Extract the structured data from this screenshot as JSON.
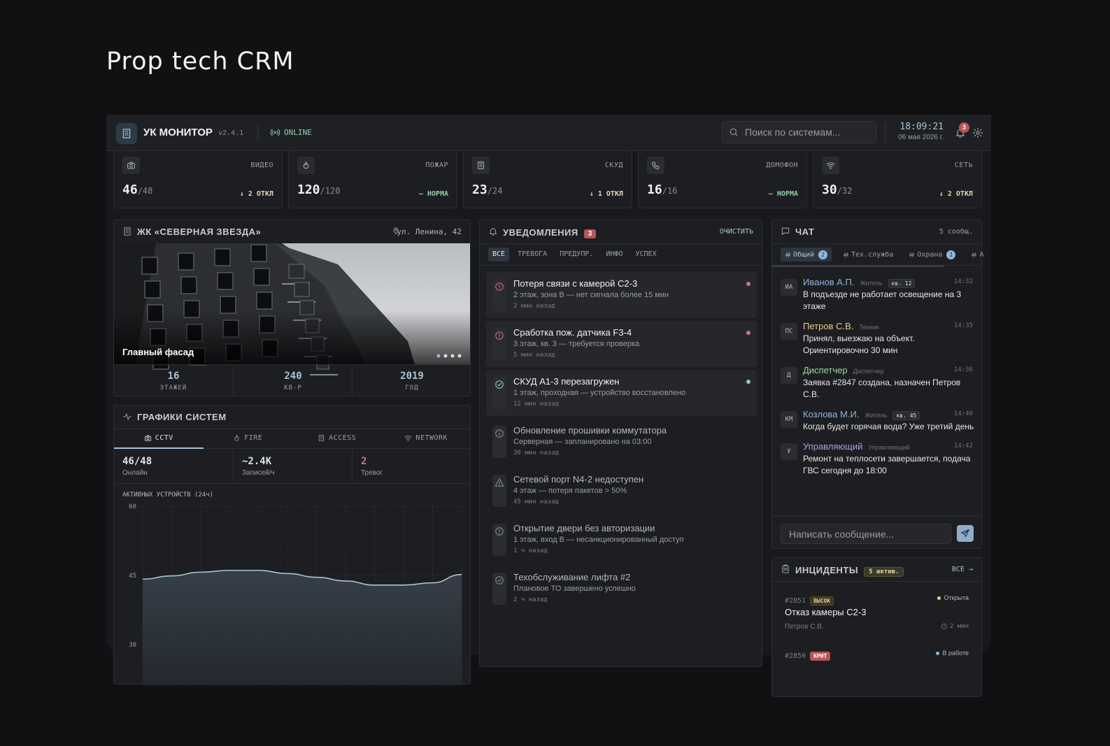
{
  "title": "Prop tech CRM",
  "header": {
    "brand": "УК МОНИТОР",
    "version": "v2.4.1",
    "status": "ONLINE",
    "search_placeholder": "Поиск по системам...",
    "time": "18:09:21",
    "date": "06 мая 2026 г.",
    "notification_count": "3"
  },
  "stats": [
    {
      "label": "ВИДЕО",
      "value": "46",
      "total": "/48",
      "status": "↓ 2 ОТКЛ",
      "ok": false
    },
    {
      "label": "ПОЖАР",
      "value": "120",
      "total": "/120",
      "status": "— НОРМА",
      "ok": true
    },
    {
      "label": "СКУД",
      "value": "23",
      "total": "/24",
      "status": "↓ 1 ОТКЛ",
      "ok": false
    },
    {
      "label": "ДОМОФОН",
      "value": "16",
      "total": "/16",
      "status": "— НОРМА",
      "ok": true
    },
    {
      "label": "СЕТЬ",
      "value": "30",
      "total": "/32",
      "status": "↓ 2 ОТКЛ",
      "ok": false
    }
  ],
  "building": {
    "name": "ЖК «СЕВЕРНАЯ ЗВЕЗДА»",
    "address": "ул. Ленина, 42",
    "photo_caption": "Главный фасад",
    "facts": [
      {
        "value": "16",
        "label": "ЭТАЖЕЙ"
      },
      {
        "value": "240",
        "label": "КВ-Р"
      },
      {
        "value": "2019",
        "label": "ГОД"
      }
    ]
  },
  "systems": {
    "title": "ГРАФИКИ СИСТЕМ",
    "tabs": [
      "CCTV",
      "FIRE",
      "ACCESS",
      "NETWORK"
    ],
    "metrics": [
      {
        "value": "46/48",
        "label": "Онлайн"
      },
      {
        "value": "~2.4K",
        "label": "Записей/ч"
      },
      {
        "value": "2",
        "label": "Тревог",
        "alert": true
      }
    ]
  },
  "chart_data": {
    "type": "area",
    "title": "АКТИВНЫХ УСТРОЙСТВ (24ч)",
    "categories": [
      null,
      null,
      null,
      null,
      null,
      null,
      null,
      null,
      null,
      null,
      null,
      null
    ],
    "values": [
      44.2,
      44.9,
      45.7,
      46.1,
      46.1,
      45.4,
      44.6,
      43.8,
      42.9,
      42.9,
      43.4,
      45.2
    ],
    "color": "#a9c3d6",
    "ylim": [
      30,
      60
    ],
    "yticks": [
      30,
      45,
      60
    ],
    "grid": true
  },
  "notifications": {
    "title": "УВЕДОМЛЕНИЯ",
    "count": "3",
    "clear": "ОЧИСТИТЬ",
    "filters": [
      "ВСЕ",
      "ТРЕВОГА",
      "ПРЕДУПР.",
      "ИНФО",
      "УСПЕХ"
    ],
    "items": [
      {
        "title": "Потеря связи с камерой С2-3",
        "detail": "2 этаж, зона B — нет сигнала более 15 мин",
        "time": "2 мин назад",
        "level": "alarm",
        "unread": true
      },
      {
        "title": "Сработка пож. датчика F3-4",
        "detail": "3 этаж, кв. 3 — требуется проверка",
        "time": "5 мин назад",
        "level": "alarm",
        "unread": true
      },
      {
        "title": "СКУД А1-3 перезагружен",
        "detail": "1 этаж, проходная — устройство восстановлено",
        "time": "12 мин назад",
        "level": "success",
        "unread": true
      },
      {
        "title": "Обновление прошивки коммутатора",
        "detail": "Серверная — запланировано на 03:00",
        "time": "30 мин назад",
        "level": "info",
        "unread": false
      },
      {
        "title": "Сетевой порт N4-2 недоступен",
        "detail": "4 этаж — потеря пакетов > 50%",
        "time": "45 мин назад",
        "level": "warning",
        "unread": false
      },
      {
        "title": "Открытие двери без авторизации",
        "detail": "1 этаж, вход B — несанкционированный доступ",
        "time": "1 ч назад",
        "level": "alarm",
        "unread": false
      },
      {
        "title": "Техобслуживание лифта #2",
        "detail": "Плановое ТО завершено успешно",
        "time": "2 ч назад",
        "level": "success",
        "unread": false
      }
    ]
  },
  "chat": {
    "title": "ЧАТ",
    "count": "5 сообщ.",
    "channels": [
      {
        "name": "Общий",
        "badge": "2"
      },
      {
        "name": "Тех.служба"
      },
      {
        "name": "Охрана",
        "badge": "1"
      },
      {
        "name": "А"
      }
    ],
    "messages": [
      {
        "initials": "ИА",
        "name": "Иванов А.П.",
        "role": "Житель",
        "apartment": "кв. 12",
        "time": "14:32",
        "text": "В подъезде не работает освещение на 3 этаже",
        "color": "#8fb6dc"
      },
      {
        "initials": "ПС",
        "name": "Петров С.В.",
        "role": "Техник",
        "time": "14:35",
        "text": "Принял, выезжаю на объект. Ориентировочно 30 мин",
        "color": "#e8cc8e"
      },
      {
        "initials": "Д",
        "name": "Диспетчер",
        "role": "Диспетчер",
        "time": "14:36",
        "text": "Заявка #2847 создана, назначен Петров С.В.",
        "color": "#9bd4a8"
      },
      {
        "initials": "КМ",
        "name": "Козлова М.И.",
        "role": "Житель",
        "apartment": "кв. 45",
        "time": "14:40",
        "text": "Когда будет горячая вода? Уже третий день",
        "color": "#8fb6dc"
      },
      {
        "initials": "У",
        "name": "Управляющий",
        "role": "Управляющий",
        "time": "14:42",
        "text": "Ремонт на теплосети завершается, подача ГВС сегодня до 18:00",
        "color": "#b69ddc"
      }
    ],
    "input_placeholder": "Написать сообщение..."
  },
  "incidents": {
    "title": "ИНЦИДЕНТЫ",
    "count": "5 актив.",
    "all": "ВСЕ →",
    "items": [
      {
        "id": "#2851",
        "priority": "ВЫСОК",
        "status": "Открыта",
        "title": "Отказ камеры С2-3",
        "assignee": "Петров С.В.",
        "age": "2 мин",
        "critical": false
      },
      {
        "id": "#2850",
        "priority": "КРИТ",
        "status": "В работе",
        "critical": true
      }
    ]
  }
}
